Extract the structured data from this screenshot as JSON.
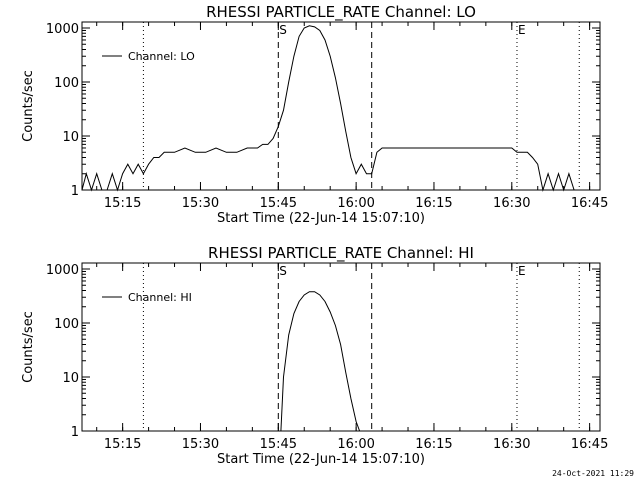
{
  "chart_data": [
    {
      "type": "line",
      "title": "RHESSI PARTICLE_RATE Channel: LO",
      "xlabel": "Start Time (22-Jun-14 15:07:10)",
      "ylabel": "Counts/sec",
      "yscale": "log",
      "xlim": [
        "15:07:10",
        "16:47:00"
      ],
      "ylim": [
        1,
        1000
      ],
      "xticks": [
        "15:15",
        "15:30",
        "15:45",
        "16:00",
        "16:15",
        "16:30",
        "16:45"
      ],
      "yticks": [
        "1",
        "10",
        "100",
        "1000"
      ],
      "legend": {
        "placement": "top-left",
        "entries": [
          "Channel: LO"
        ]
      },
      "markers": [
        {
          "label": "S",
          "time": "15:45:00",
          "style": "dashed"
        },
        {
          "label": "",
          "time": "16:03:00",
          "style": "dashed"
        },
        {
          "label": "E",
          "time": "16:31:00",
          "style": "dotted"
        },
        {
          "label": "",
          "time": "15:19:00",
          "style": "dotted"
        },
        {
          "label": "",
          "time": "16:43:00",
          "style": "dotted"
        }
      ],
      "series": [
        {
          "name": "Channel: LO",
          "x": [
            "15:07:10",
            "15:08:00",
            "15:09:00",
            "15:10:00",
            "15:11:00",
            "15:12:00",
            "15:13:00",
            "15:14:00",
            "15:15:00",
            "15:16:00",
            "15:17:00",
            "15:18:00",
            "15:19:00",
            "15:20:00",
            "15:21:00",
            "15:22:00",
            "15:23:00",
            "15:25:00",
            "15:27:00",
            "15:29:00",
            "15:31:00",
            "15:33:00",
            "15:35:00",
            "15:37:00",
            "15:39:00",
            "15:41:00",
            "15:42:00",
            "15:43:00",
            "15:44:00",
            "15:45:00",
            "15:46:00",
            "15:47:00",
            "15:48:00",
            "15:49:00",
            "15:50:00",
            "15:51:00",
            "15:52:00",
            "15:53:00",
            "15:54:00",
            "15:55:00",
            "15:56:00",
            "15:57:00",
            "15:58:00",
            "15:59:00",
            "16:00:00",
            "16:01:00",
            "16:02:00",
            "16:03:00",
            "16:04:00",
            "16:05:00",
            "16:06:00",
            "16:08:00",
            "16:10:00",
            "16:12:00",
            "16:14:00",
            "16:16:00",
            "16:18:00",
            "16:20:00",
            "16:22:00",
            "16:24:00",
            "16:26:00",
            "16:28:00",
            "16:30:00",
            "16:31:00",
            "16:32:00",
            "16:33:00",
            "16:34:00",
            "16:35:00",
            "16:36:00",
            "16:37:00",
            "16:38:00",
            "16:39:00",
            "16:40:00",
            "16:41:00",
            "16:42:00",
            "16:43:00"
          ],
          "y": [
            1,
            2,
            1,
            2,
            1,
            1,
            2,
            1,
            2,
            3,
            2,
            3,
            2,
            3,
            4,
            4,
            5,
            5,
            6,
            5,
            5,
            6,
            5,
            5,
            6,
            6,
            7,
            7,
            9,
            15,
            30,
            100,
            300,
            700,
            1000,
            1100,
            1050,
            900,
            600,
            300,
            120,
            40,
            12,
            4,
            2,
            3,
            2,
            2,
            5,
            6,
            6,
            6,
            6,
            6,
            6,
            6,
            6,
            6,
            6,
            6,
            6,
            6,
            6,
            5,
            5,
            5,
            4,
            3,
            1,
            2,
            1,
            2,
            1,
            2,
            1,
            1
          ]
        }
      ]
    },
    {
      "type": "line",
      "title": "RHESSI PARTICLE_RATE Channel: HI",
      "xlabel": "Start Time (22-Jun-14 15:07:10)",
      "ylabel": "Counts/sec",
      "yscale": "log",
      "xlim": [
        "15:07:10",
        "16:47:00"
      ],
      "ylim": [
        1,
        1000
      ],
      "xticks": [
        "15:15",
        "15:30",
        "15:45",
        "16:00",
        "16:15",
        "16:30",
        "16:45"
      ],
      "yticks": [
        "1",
        "10",
        "100",
        "1000"
      ],
      "legend": {
        "placement": "top-left",
        "entries": [
          "Channel: HI"
        ]
      },
      "markers": [
        {
          "label": "S",
          "time": "15:45:00",
          "style": "dashed"
        },
        {
          "label": "",
          "time": "16:03:00",
          "style": "dashed"
        },
        {
          "label": "E",
          "time": "16:31:00",
          "style": "dotted"
        },
        {
          "label": "",
          "time": "15:19:00",
          "style": "dotted"
        },
        {
          "label": "",
          "time": "16:43:00",
          "style": "dotted"
        }
      ],
      "series": [
        {
          "name": "Channel: HI",
          "x": [
            "15:45:30",
            "15:46:00",
            "15:47:00",
            "15:48:00",
            "15:49:00",
            "15:50:00",
            "15:51:00",
            "15:52:00",
            "15:53:00",
            "15:54:00",
            "15:55:00",
            "15:56:00",
            "15:57:00",
            "15:58:00",
            "15:59:00",
            "16:00:00",
            "16:00:40"
          ],
          "y": [
            1,
            10,
            60,
            150,
            250,
            330,
            380,
            380,
            330,
            250,
            160,
            90,
            40,
            12,
            4,
            1.5,
            1
          ]
        }
      ]
    }
  ],
  "footer": {
    "timestamp": "24-Oct-2021 11:29"
  }
}
